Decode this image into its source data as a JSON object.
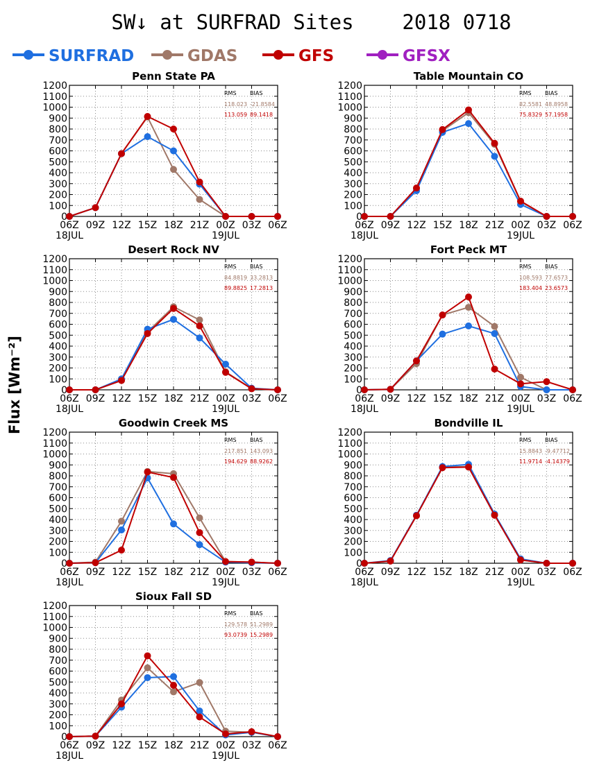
{
  "figure": {
    "title": "SW↓ at SURFRAD Sites",
    "date": "2018 0718",
    "ylabel": "Flux [Wm⁻²]"
  },
  "legend": [
    {
      "name": "SURFRAD",
      "color": "#1f6fe0"
    },
    {
      "name": "GDAS",
      "color": "#a07868"
    },
    {
      "name": "GFS",
      "color": "#c00000"
    },
    {
      "name": "GFSX",
      "color": "#a020c0"
    }
  ],
  "chart_data": [
    {
      "type": "line",
      "title": "Penn State PA",
      "x": [
        "06Z",
        "09Z",
        "12Z",
        "15Z",
        "18Z",
        "21Z",
        "00Z",
        "03Z",
        "06Z"
      ],
      "x_sublabels": [
        "18JUL",
        "",
        "",
        "",
        "",
        "",
        "19JUL",
        "",
        ""
      ],
      "ylim": [
        0,
        1200
      ],
      "yticks": [
        0,
        100,
        200,
        300,
        400,
        500,
        600,
        700,
        800,
        900,
        1000,
        1100,
        1200
      ],
      "grid": true,
      "stats": {
        "headers": [
          "RMS",
          "BIAS"
        ],
        "GDAS": [
          "118.023",
          "-21.8584"
        ],
        "GFS": [
          "113.059",
          "89.1418"
        ]
      },
      "series": [
        {
          "name": "SURFRAD",
          "values": [
            0,
            80,
            575,
            730,
            600,
            295,
            0,
            0,
            0
          ]
        },
        {
          "name": "GDAS",
          "values": [
            0,
            80,
            575,
            910,
            430,
            155,
            0,
            0,
            0
          ]
        },
        {
          "name": "GFS",
          "values": [
            0,
            80,
            575,
            915,
            800,
            315,
            0,
            0,
            0
          ]
        }
      ]
    },
    {
      "type": "line",
      "title": "Table Mountain CO",
      "x": [
        "06Z",
        "09Z",
        "12Z",
        "15Z",
        "18Z",
        "21Z",
        "00Z",
        "03Z",
        "06Z"
      ],
      "x_sublabels": [
        "18JUL",
        "",
        "",
        "",
        "",
        "",
        "19JUL",
        "",
        ""
      ],
      "ylim": [
        0,
        1200
      ],
      "yticks": [
        0,
        100,
        200,
        300,
        400,
        500,
        600,
        700,
        800,
        900,
        1000,
        1100,
        1200
      ],
      "grid": true,
      "stats": {
        "headers": [
          "RMS",
          "BIAS"
        ],
        "GDAS": [
          "82.5581",
          "48.8958"
        ],
        "GFS": [
          "75.8329",
          "57.1958"
        ]
      },
      "series": [
        {
          "name": "SURFRAD",
          "values": [
            0,
            0,
            235,
            770,
            850,
            550,
            110,
            0,
            0
          ]
        },
        {
          "name": "GDAS",
          "values": [
            0,
            0,
            255,
            785,
            950,
            660,
            135,
            0,
            0
          ]
        },
        {
          "name": "GFS",
          "values": [
            0,
            0,
            260,
            795,
            975,
            670,
            140,
            0,
            0
          ]
        }
      ]
    },
    {
      "type": "line",
      "title": "Desert Rock NV",
      "x": [
        "06Z",
        "09Z",
        "12Z",
        "15Z",
        "18Z",
        "21Z",
        "00Z",
        "03Z",
        "06Z"
      ],
      "x_sublabels": [
        "18JUL",
        "",
        "",
        "",
        "",
        "",
        "19JUL",
        "",
        ""
      ],
      "ylim": [
        0,
        1200
      ],
      "yticks": [
        0,
        100,
        200,
        300,
        400,
        500,
        600,
        700,
        800,
        900,
        1000,
        1100,
        1200
      ],
      "grid": true,
      "stats": {
        "headers": [
          "RMS",
          "BIAS"
        ],
        "GDAS": [
          "84.8819",
          "33.2813"
        ],
        "GFS": [
          "89.8825",
          "17.2813"
        ]
      },
      "series": [
        {
          "name": "SURFRAD",
          "values": [
            0,
            0,
            100,
            555,
            645,
            475,
            235,
            15,
            0
          ]
        },
        {
          "name": "GDAS",
          "values": [
            0,
            0,
            90,
            530,
            760,
            640,
            165,
            10,
            0
          ]
        },
        {
          "name": "GFS",
          "values": [
            0,
            0,
            85,
            515,
            745,
            585,
            160,
            10,
            0
          ]
        }
      ]
    },
    {
      "type": "line",
      "title": "Fort Peck MT",
      "x": [
        "06Z",
        "09Z",
        "12Z",
        "15Z",
        "18Z",
        "21Z",
        "00Z",
        "03Z",
        "06Z"
      ],
      "x_sublabels": [
        "18JUL",
        "",
        "",
        "",
        "",
        "",
        "19JUL",
        "",
        ""
      ],
      "ylim": [
        0,
        1200
      ],
      "yticks": [
        0,
        100,
        200,
        300,
        400,
        500,
        600,
        700,
        800,
        900,
        1000,
        1100,
        1200
      ],
      "grid": true,
      "stats": {
        "headers": [
          "RMS",
          "BIAS"
        ],
        "GDAS": [
          "108.593",
          "77.6573"
        ],
        "GFS": [
          "183.404",
          "23.6573"
        ]
      },
      "series": [
        {
          "name": "SURFRAD",
          "values": [
            0,
            5,
            265,
            510,
            585,
            515,
            30,
            0,
            0
          ]
        },
        {
          "name": "GDAS",
          "values": [
            0,
            5,
            240,
            685,
            755,
            580,
            115,
            0,
            0
          ]
        },
        {
          "name": "GFS",
          "values": [
            0,
            5,
            265,
            685,
            850,
            190,
            55,
            75,
            0
          ]
        }
      ]
    },
    {
      "type": "line",
      "title": "Goodwin Creek MS",
      "x": [
        "06Z",
        "09Z",
        "12Z",
        "15Z",
        "18Z",
        "21Z",
        "00Z",
        "03Z",
        "06Z"
      ],
      "x_sublabels": [
        "18JUL",
        "",
        "",
        "",
        "",
        "",
        "19JUL",
        "",
        ""
      ],
      "ylim": [
        0,
        1200
      ],
      "yticks": [
        0,
        100,
        200,
        300,
        400,
        500,
        600,
        700,
        800,
        900,
        1000,
        1100,
        1200
      ],
      "grid": true,
      "stats": {
        "headers": [
          "RMS",
          "BIAS"
        ],
        "GDAS": [
          "217.851",
          "143.093"
        ],
        "GFS": [
          "194.629",
          "88.9262"
        ]
      },
      "series": [
        {
          "name": "SURFRAD",
          "values": [
            0,
            5,
            305,
            780,
            360,
            170,
            10,
            5,
            0
          ]
        },
        {
          "name": "GDAS",
          "values": [
            0,
            10,
            385,
            840,
            820,
            415,
            15,
            10,
            0
          ]
        },
        {
          "name": "GFS",
          "values": [
            0,
            5,
            120,
            835,
            785,
            280,
            15,
            10,
            0
          ]
        }
      ]
    },
    {
      "type": "line",
      "title": "Bondville IL",
      "x": [
        "06Z",
        "09Z",
        "12Z",
        "15Z",
        "18Z",
        "21Z",
        "00Z",
        "03Z",
        "06Z"
      ],
      "x_sublabels": [
        "18JUL",
        "",
        "",
        "",
        "",
        "",
        "19JUL",
        "",
        ""
      ],
      "ylim": [
        0,
        1200
      ],
      "yticks": [
        0,
        100,
        200,
        300,
        400,
        500,
        600,
        700,
        800,
        900,
        1000,
        1100,
        1200
      ],
      "grid": true,
      "stats": {
        "headers": [
          "RMS",
          "BIAS"
        ],
        "GDAS": [
          "15.8843",
          "-9.47712"
        ],
        "GFS": [
          "11.9714",
          "-4.14379"
        ]
      },
      "series": [
        {
          "name": "SURFRAD",
          "values": [
            0,
            25,
            440,
            885,
            905,
            450,
            40,
            0,
            0
          ]
        },
        {
          "name": "GDAS",
          "values": [
            0,
            20,
            435,
            880,
            885,
            445,
            30,
            0,
            0
          ]
        },
        {
          "name": "GFS",
          "values": [
            0,
            20,
            435,
            875,
            880,
            440,
            30,
            0,
            0
          ]
        }
      ]
    },
    {
      "type": "line",
      "title": "Sioux Fall SD",
      "x": [
        "06Z",
        "09Z",
        "12Z",
        "15Z",
        "18Z",
        "21Z",
        "00Z",
        "03Z",
        "06Z"
      ],
      "x_sublabels": [
        "18JUL",
        "",
        "",
        "",
        "",
        "",
        "19JUL",
        "",
        ""
      ],
      "ylim": [
        0,
        1200
      ],
      "yticks": [
        0,
        100,
        200,
        300,
        400,
        500,
        600,
        700,
        800,
        900,
        1000,
        1100,
        1200
      ],
      "grid": true,
      "stats": {
        "headers": [
          "RMS",
          "BIAS"
        ],
        "GDAS": [
          "129.578",
          "51.2989"
        ],
        "GFS": [
          "93.0739",
          "15.2989"
        ]
      },
      "series": [
        {
          "name": "SURFRAD",
          "values": [
            0,
            5,
            270,
            540,
            550,
            235,
            15,
            40,
            0
          ]
        },
        {
          "name": "GDAS",
          "values": [
            0,
            5,
            335,
            630,
            410,
            495,
            50,
            40,
            0
          ]
        },
        {
          "name": "GFS",
          "values": [
            0,
            5,
            300,
            740,
            470,
            180,
            25,
            45,
            0
          ]
        }
      ]
    }
  ]
}
